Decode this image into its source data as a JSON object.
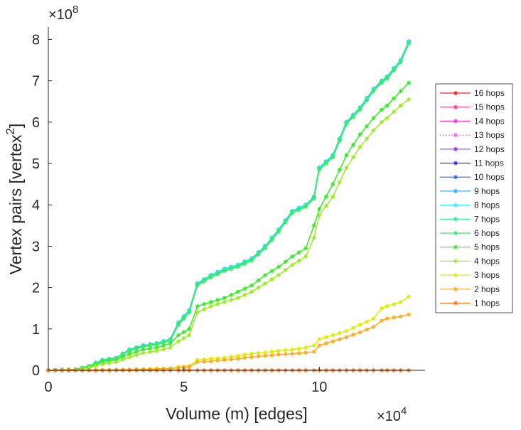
{
  "chart_data": {
    "type": "line",
    "title": "",
    "xlabel": "Volume (m) [edges]",
    "ylabel_main": "Vertex pairs [vertex",
    "ylabel_sup": "2",
    "ylabel_close": "]",
    "x_exponent_base": "×10",
    "x_exponent": "4",
    "y_exponent_base": "×10",
    "y_exponent": "8",
    "x_scale": 10000,
    "y_scale": 100000000,
    "xlim": [
      0,
      13.9
    ],
    "ylim": [
      0,
      8.3
    ],
    "xticks": [
      0,
      5,
      10
    ],
    "xtick_labels": [
      "0",
      "5",
      "10"
    ],
    "yticks": [
      0,
      1,
      2,
      3,
      4,
      5,
      6,
      7,
      8
    ],
    "ytick_labels": [
      "0",
      "1",
      "2",
      "3",
      "4",
      "5",
      "6",
      "7",
      "8"
    ],
    "grid": false,
    "legend_position": "right",
    "x": [
      0,
      1,
      1.5,
      2,
      2.5,
      3,
      3.5,
      4,
      4.5,
      4.8,
      5.2,
      5.5,
      6,
      6.5,
      7,
      7.5,
      8,
      8.5,
      9,
      9.5,
      9.8,
      10,
      10.5,
      11,
      11.5,
      12,
      12.3,
      12.5,
      13,
      13.3
    ],
    "series": [
      {
        "name": "16 hops",
        "color": "#ff2020",
        "values": [
          0,
          0.02,
          0.1,
          0.25,
          0.3,
          0.5,
          0.6,
          0.65,
          0.75,
          1.15,
          1.45,
          2.1,
          2.3,
          2.45,
          2.55,
          2.7,
          3.0,
          3.4,
          3.85,
          4.0,
          4.2,
          4.9,
          5.2,
          6.0,
          6.35,
          6.8,
          7.0,
          7.1,
          7.5,
          7.95
        ]
      },
      {
        "name": "15 hops",
        "color": "#ff3c8c",
        "values": [
          0,
          0.02,
          0.1,
          0.25,
          0.3,
          0.5,
          0.6,
          0.65,
          0.75,
          1.15,
          1.45,
          2.1,
          2.3,
          2.45,
          2.55,
          2.7,
          3.0,
          3.4,
          3.85,
          4.0,
          4.2,
          4.9,
          5.2,
          6.0,
          6.35,
          6.8,
          7.0,
          7.1,
          7.5,
          7.95
        ]
      },
      {
        "name": "14 hops",
        "color": "#ff33cc",
        "values": [
          0,
          0.02,
          0.1,
          0.25,
          0.3,
          0.5,
          0.6,
          0.65,
          0.75,
          1.15,
          1.45,
          2.1,
          2.3,
          2.45,
          2.55,
          2.7,
          3.0,
          3.4,
          3.85,
          4.0,
          4.2,
          4.9,
          5.2,
          6.0,
          6.35,
          6.8,
          7.0,
          7.1,
          7.5,
          7.95
        ]
      },
      {
        "name": "13 hops",
        "color": "#f06cf0",
        "values": [
          0,
          0.02,
          0.1,
          0.25,
          0.3,
          0.5,
          0.6,
          0.65,
          0.75,
          1.15,
          1.45,
          2.1,
          2.3,
          2.45,
          2.55,
          2.7,
          3.0,
          3.4,
          3.85,
          4.0,
          4.2,
          4.9,
          5.2,
          6.0,
          6.35,
          6.8,
          7.0,
          7.1,
          7.5,
          7.95
        ]
      },
      {
        "name": "12 hops",
        "color": "#9933ff",
        "values": [
          0,
          0.02,
          0.1,
          0.25,
          0.3,
          0.5,
          0.6,
          0.65,
          0.75,
          1.15,
          1.45,
          2.1,
          2.3,
          2.45,
          2.55,
          2.7,
          3.0,
          3.4,
          3.85,
          4.0,
          4.2,
          4.9,
          5.2,
          6.0,
          6.35,
          6.8,
          7.0,
          7.1,
          7.5,
          7.95
        ]
      },
      {
        "name": "11 hops",
        "color": "#3333ff",
        "values": [
          0,
          0.02,
          0.1,
          0.25,
          0.3,
          0.5,
          0.6,
          0.65,
          0.75,
          1.15,
          1.45,
          2.1,
          2.3,
          2.45,
          2.55,
          2.7,
          3.0,
          3.4,
          3.85,
          4.0,
          4.2,
          4.9,
          5.2,
          6.0,
          6.35,
          6.8,
          7.0,
          7.1,
          7.5,
          7.95
        ]
      },
      {
        "name": "10 hops",
        "color": "#3366ff",
        "values": [
          0,
          0.02,
          0.1,
          0.25,
          0.3,
          0.5,
          0.6,
          0.65,
          0.75,
          1.15,
          1.45,
          2.1,
          2.3,
          2.45,
          2.55,
          2.7,
          3.0,
          3.4,
          3.85,
          4.0,
          4.2,
          4.9,
          5.2,
          6.0,
          6.35,
          6.8,
          7.0,
          7.1,
          7.5,
          7.95
        ]
      },
      {
        "name": "9 hops",
        "color": "#33aaff",
        "values": [
          0,
          0.02,
          0.1,
          0.25,
          0.3,
          0.5,
          0.6,
          0.65,
          0.75,
          1.15,
          1.45,
          2.1,
          2.3,
          2.45,
          2.55,
          2.7,
          3.0,
          3.4,
          3.85,
          4.0,
          4.2,
          4.9,
          5.2,
          6.0,
          6.35,
          6.8,
          7.0,
          7.1,
          7.5,
          7.95
        ]
      },
      {
        "name": "8 hops",
        "color": "#33eeff",
        "values": [
          0,
          0.02,
          0.1,
          0.25,
          0.3,
          0.5,
          0.6,
          0.65,
          0.75,
          1.15,
          1.45,
          2.1,
          2.3,
          2.45,
          2.55,
          2.7,
          3.0,
          3.4,
          3.85,
          4.0,
          4.2,
          4.9,
          5.2,
          6.0,
          6.35,
          6.8,
          7.0,
          7.1,
          7.5,
          7.95
        ]
      },
      {
        "name": "7 hops",
        "color": "#22ee99",
        "values": [
          0,
          0.02,
          0.1,
          0.24,
          0.29,
          0.49,
          0.59,
          0.64,
          0.74,
          1.13,
          1.43,
          2.08,
          2.28,
          2.43,
          2.53,
          2.68,
          2.98,
          3.38,
          3.83,
          3.98,
          4.18,
          4.88,
          5.18,
          5.98,
          6.33,
          6.78,
          6.98,
          7.08,
          7.48,
          7.93
        ]
      },
      {
        "name": "6 hops",
        "color": "#33ee66",
        "values": [
          0,
          0.02,
          0.09,
          0.23,
          0.28,
          0.47,
          0.57,
          0.62,
          0.72,
          1.1,
          1.4,
          2.05,
          2.25,
          2.4,
          2.5,
          2.65,
          2.95,
          3.35,
          3.8,
          3.95,
          4.15,
          4.85,
          5.15,
          5.95,
          6.3,
          6.75,
          6.95,
          7.05,
          7.45,
          7.9
        ]
      },
      {
        "name": "5 hops",
        "color": "#33ee22",
        "values": [
          0,
          0.01,
          0.08,
          0.2,
          0.25,
          0.4,
          0.5,
          0.55,
          0.65,
          0.85,
          1.0,
          1.55,
          1.65,
          1.75,
          1.9,
          2.05,
          2.3,
          2.5,
          2.75,
          2.95,
          3.5,
          3.9,
          4.5,
          5.2,
          5.7,
          6.1,
          6.3,
          6.4,
          6.75,
          6.95
        ]
      },
      {
        "name": "4 hops",
        "color": "#99ee22",
        "values": [
          0,
          0.01,
          0.06,
          0.15,
          0.2,
          0.32,
          0.42,
          0.47,
          0.55,
          0.7,
          0.85,
          1.4,
          1.55,
          1.65,
          1.75,
          1.9,
          2.1,
          2.3,
          2.55,
          2.75,
          3.2,
          3.75,
          4.2,
          4.9,
          5.4,
          5.8,
          6.0,
          6.1,
          6.4,
          6.55
        ]
      },
      {
        "name": "3 hops",
        "color": "#ddee00",
        "values": [
          0,
          0,
          0,
          0.01,
          0.01,
          0.02,
          0.03,
          0.04,
          0.05,
          0.08,
          0.1,
          0.25,
          0.28,
          0.3,
          0.35,
          0.4,
          0.43,
          0.47,
          0.5,
          0.55,
          0.6,
          0.75,
          0.85,
          0.95,
          1.1,
          1.25,
          1.5,
          1.55,
          1.65,
          1.78
        ]
      },
      {
        "name": "2 hops",
        "color": "#ffaa22",
        "values": [
          0,
          0,
          0,
          0,
          0.01,
          0.01,
          0.02,
          0.03,
          0.04,
          0.06,
          0.08,
          0.2,
          0.22,
          0.25,
          0.28,
          0.32,
          0.35,
          0.38,
          0.4,
          0.43,
          0.45,
          0.6,
          0.7,
          0.8,
          0.92,
          1.05,
          1.2,
          1.25,
          1.3,
          1.35
        ]
      },
      {
        "name": "1 hops",
        "color": "#ff7722",
        "values": [
          0,
          0,
          0,
          0,
          0,
          0,
          0,
          0,
          0,
          0,
          0,
          0,
          0,
          0,
          0,
          0,
          0,
          0,
          0,
          0,
          0,
          0,
          0,
          0,
          0,
          0,
          0,
          0,
          0,
          0
        ]
      }
    ]
  }
}
